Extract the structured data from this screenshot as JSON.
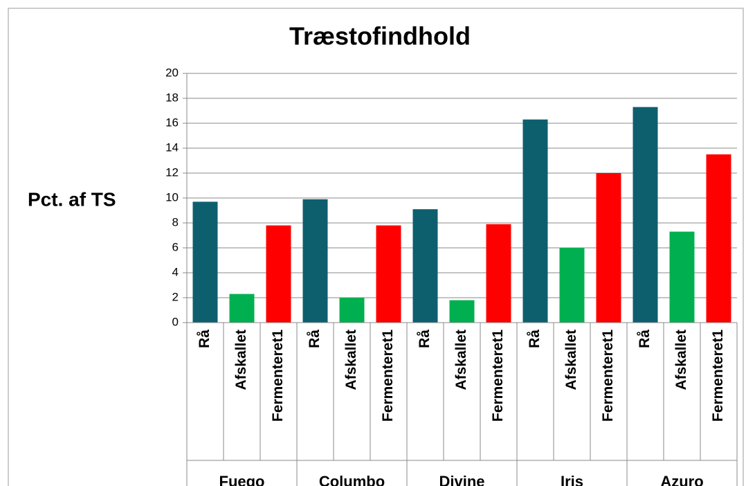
{
  "chart_data": {
    "type": "bar",
    "title": "Træstofindhold",
    "y_label": "Pct. af TS",
    "categories": [
      "Fuego",
      "Columbo",
      "Divine",
      "Iris",
      "Azuro"
    ],
    "series": [
      {
        "name": "Rå",
        "color": "#0d5f6e",
        "values": [
          9.7,
          9.9,
          9.1,
          16.3,
          17.3
        ]
      },
      {
        "name": "Afskallet",
        "color": "#00b050",
        "values": [
          2.3,
          2.0,
          1.8,
          6.0,
          7.3
        ]
      },
      {
        "name": "Fermenteret1",
        "color": "#ff0000",
        "values": [
          7.8,
          7.8,
          7.9,
          12.0,
          13.5
        ]
      }
    ],
    "ylim": [
      0,
      20
    ],
    "yticks": [
      0,
      2,
      4,
      6,
      8,
      10,
      12,
      14,
      16,
      18,
      20
    ],
    "grid": true
  }
}
